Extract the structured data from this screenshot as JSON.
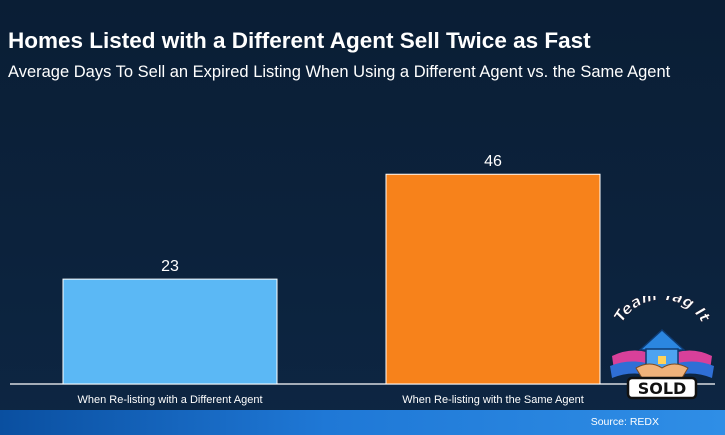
{
  "header": {
    "title": "Homes Listed with a Different Agent Sell Twice as Fast",
    "subtitle": "Average Days To Sell an Expired Listing When Using a Different Agent vs. the Same Agent"
  },
  "chart_data": {
    "type": "bar",
    "title": "Homes Listed with a Different Agent Sell Twice as Fast",
    "subtitle": "Average Days To Sell an Expired Listing When Using a Different Agent vs. the Same Agent",
    "categories": [
      "When Re-listing with a Different Agent",
      "When Re-listing with the Same Agent"
    ],
    "values": [
      23,
      46
    ],
    "data_labels": [
      "23",
      "46"
    ],
    "colors": [
      "#5bb8f5",
      "#f7821b"
    ],
    "ylim": [
      0,
      50
    ],
    "grid": false,
    "legend": "none"
  },
  "source": "Source: REDX",
  "logo": {
    "top_text": "Team Tag It",
    "bottom_text": "SOLD"
  }
}
